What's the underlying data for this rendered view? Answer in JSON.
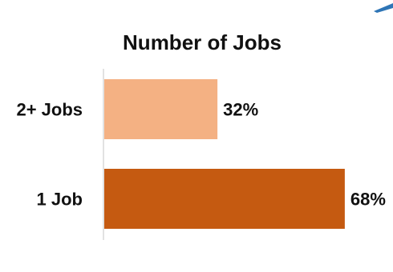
{
  "chart_data": {
    "type": "bar",
    "orientation": "horizontal",
    "title": "Number of Jobs",
    "categories": [
      "2+ Jobs",
      "1 Job"
    ],
    "values": [
      32,
      68
    ],
    "value_labels": [
      "32%",
      "68%"
    ],
    "colors": [
      "#F4B183",
      "#C55A11"
    ],
    "xlim": [
      0,
      100
    ],
    "grid": false,
    "legend": "none"
  },
  "decor": {
    "corner_accent_color": "#2E75B6"
  }
}
